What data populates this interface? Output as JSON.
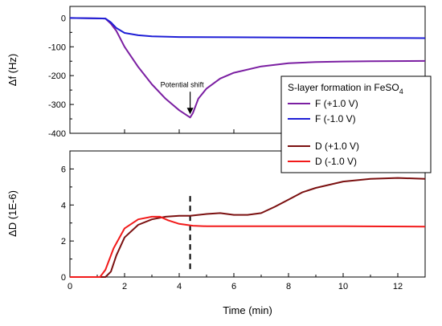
{
  "chart_data": [
    {
      "type": "line",
      "ylabel": "Δf (Hz)",
      "xlim": [
        0,
        13
      ],
      "ylim": [
        -400,
        40
      ],
      "yticks": [
        0,
        -100,
        -200,
        -300,
        -400
      ],
      "yticklabels": [
        "0",
        "-100",
        "-200",
        "-300",
        "-400"
      ],
      "grid": false,
      "series": [
        {
          "name": "F (+1.0 V)",
          "color": "#7b1fa2",
          "x": [
            0,
            1.3,
            1.5,
            1.7,
            2.0,
            2.5,
            3.0,
            3.5,
            4.0,
            4.4,
            4.5,
            4.7,
            5.0,
            5.5,
            6.0,
            7.0,
            8.0,
            9.0,
            10.0,
            11.0,
            13.0
          ],
          "y": [
            0,
            -2,
            -20,
            -45,
            -100,
            -170,
            -230,
            -280,
            -320,
            -345,
            -330,
            -280,
            -245,
            -210,
            -190,
            -168,
            -157,
            -153,
            -151,
            -150,
            -149
          ]
        },
        {
          "name": "F (-1.0 V)",
          "color": "#1f1fd6",
          "x": [
            0,
            1.3,
            1.5,
            1.7,
            2.0,
            2.5,
            3.0,
            4.0,
            6.0,
            8.0,
            10.0,
            13.0
          ],
          "y": [
            0,
            -2,
            -15,
            -35,
            -52,
            -60,
            -64,
            -66,
            -67,
            -68,
            -69,
            -70
          ]
        }
      ],
      "annotations": [
        {
          "text": "Potential shift",
          "x": 4.4,
          "y": -345
        }
      ],
      "legend_title": "S-layer formation in FeSO4",
      "legend_position": "right"
    },
    {
      "type": "line",
      "xlabel": "Time (min)",
      "ylabel": "ΔD (1E-6)",
      "xlim": [
        0,
        13
      ],
      "ylim": [
        0,
        7
      ],
      "xticks": [
        0,
        2,
        4,
        6,
        8,
        10,
        12
      ],
      "xticklabels": [
        "0",
        "2",
        "4",
        "6",
        "8",
        "10",
        "12"
      ],
      "yticks": [
        0,
        2,
        4,
        6
      ],
      "yticklabels": [
        "0",
        "2",
        "4",
        "6"
      ],
      "grid": false,
      "vline_x": 4.4,
      "series": [
        {
          "name": "D (+1.0 V)",
          "color": "#7b1010",
          "x": [
            0,
            1.3,
            1.5,
            1.7,
            2.0,
            2.5,
            3.0,
            3.5,
            4.0,
            4.4,
            5.0,
            5.5,
            6.0,
            6.5,
            7.0,
            7.5,
            8.0,
            8.5,
            9.0,
            10.0,
            11.0,
            12.0,
            13.0
          ],
          "y": [
            0,
            0,
            0.3,
            1.2,
            2.2,
            2.9,
            3.2,
            3.35,
            3.4,
            3.4,
            3.5,
            3.55,
            3.45,
            3.45,
            3.55,
            3.9,
            4.3,
            4.7,
            4.95,
            5.3,
            5.45,
            5.5,
            5.45
          ]
        },
        {
          "name": "D (-1.0 V)",
          "color": "#f21a1a",
          "x": [
            0,
            1.1,
            1.3,
            1.6,
            2.0,
            2.5,
            3.0,
            3.3,
            3.6,
            4.0,
            4.5,
            5.0,
            6.0,
            8.0,
            10.0,
            13.0
          ],
          "y": [
            0,
            0,
            0.4,
            1.6,
            2.7,
            3.2,
            3.35,
            3.35,
            3.15,
            2.95,
            2.85,
            2.82,
            2.82,
            2.82,
            2.82,
            2.8
          ]
        }
      ]
    }
  ],
  "legend": {
    "title_main": "S-layer formation in FeSO",
    "title_subscript": "4",
    "entries": [
      "F (+1.0 V)",
      "F (-1.0 V)",
      "D (+1.0 V)",
      "D (-1.0 V)"
    ]
  }
}
